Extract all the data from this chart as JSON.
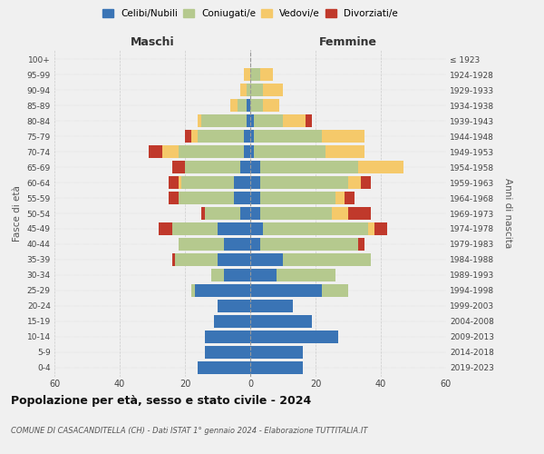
{
  "age_groups": [
    "0-4",
    "5-9",
    "10-14",
    "15-19",
    "20-24",
    "25-29",
    "30-34",
    "35-39",
    "40-44",
    "45-49",
    "50-54",
    "55-59",
    "60-64",
    "65-69",
    "70-74",
    "75-79",
    "80-84",
    "85-89",
    "90-94",
    "95-99",
    "100+"
  ],
  "birth_years": [
    "2019-2023",
    "2014-2018",
    "2009-2013",
    "2004-2008",
    "1999-2003",
    "1994-1998",
    "1989-1993",
    "1984-1988",
    "1979-1983",
    "1974-1978",
    "1969-1973",
    "1964-1968",
    "1959-1963",
    "1954-1958",
    "1949-1953",
    "1944-1948",
    "1939-1943",
    "1934-1938",
    "1929-1933",
    "1924-1928",
    "≤ 1923"
  ],
  "males": {
    "celibi": [
      16,
      14,
      14,
      11,
      10,
      17,
      8,
      10,
      8,
      10,
      3,
      5,
      5,
      3,
      2,
      2,
      1,
      1,
      0,
      0,
      0
    ],
    "coniugati": [
      0,
      0,
      0,
      0,
      0,
      1,
      4,
      13,
      14,
      14,
      11,
      17,
      16,
      17,
      20,
      14,
      14,
      3,
      1,
      0,
      0
    ],
    "vedovi": [
      0,
      0,
      0,
      0,
      0,
      0,
      0,
      0,
      0,
      0,
      0,
      0,
      1,
      0,
      5,
      2,
      1,
      2,
      2,
      2,
      0
    ],
    "divorziati": [
      0,
      0,
      0,
      0,
      0,
      0,
      0,
      1,
      0,
      4,
      1,
      3,
      3,
      4,
      4,
      2,
      0,
      0,
      0,
      0,
      0
    ]
  },
  "females": {
    "nubili": [
      16,
      16,
      27,
      19,
      13,
      22,
      8,
      10,
      3,
      4,
      3,
      3,
      3,
      3,
      1,
      1,
      1,
      0,
      0,
      0,
      0
    ],
    "coniugate": [
      0,
      0,
      0,
      0,
      0,
      8,
      18,
      27,
      30,
      32,
      22,
      23,
      27,
      30,
      22,
      21,
      9,
      4,
      4,
      3,
      0
    ],
    "vedove": [
      0,
      0,
      0,
      0,
      0,
      0,
      0,
      0,
      0,
      2,
      5,
      3,
      4,
      14,
      12,
      13,
      7,
      5,
      6,
      4,
      0
    ],
    "divorziate": [
      0,
      0,
      0,
      0,
      0,
      0,
      0,
      0,
      2,
      4,
      7,
      3,
      3,
      0,
      0,
      0,
      2,
      0,
      0,
      0,
      0
    ]
  },
  "colors": {
    "celibi": "#3a74b5",
    "coniugati": "#b5c98e",
    "vedovi": "#f5c96a",
    "divorziati": "#c0392b"
  },
  "xlim": 60,
  "bg_color": "#f0f0f0",
  "title": "Popolazione per età, sesso e stato civile - 2024",
  "subtitle": "COMUNE DI CASACANDITELLA (CH) - Dati ISTAT 1° gennaio 2024 - Elaborazione TUTTITALIA.IT"
}
